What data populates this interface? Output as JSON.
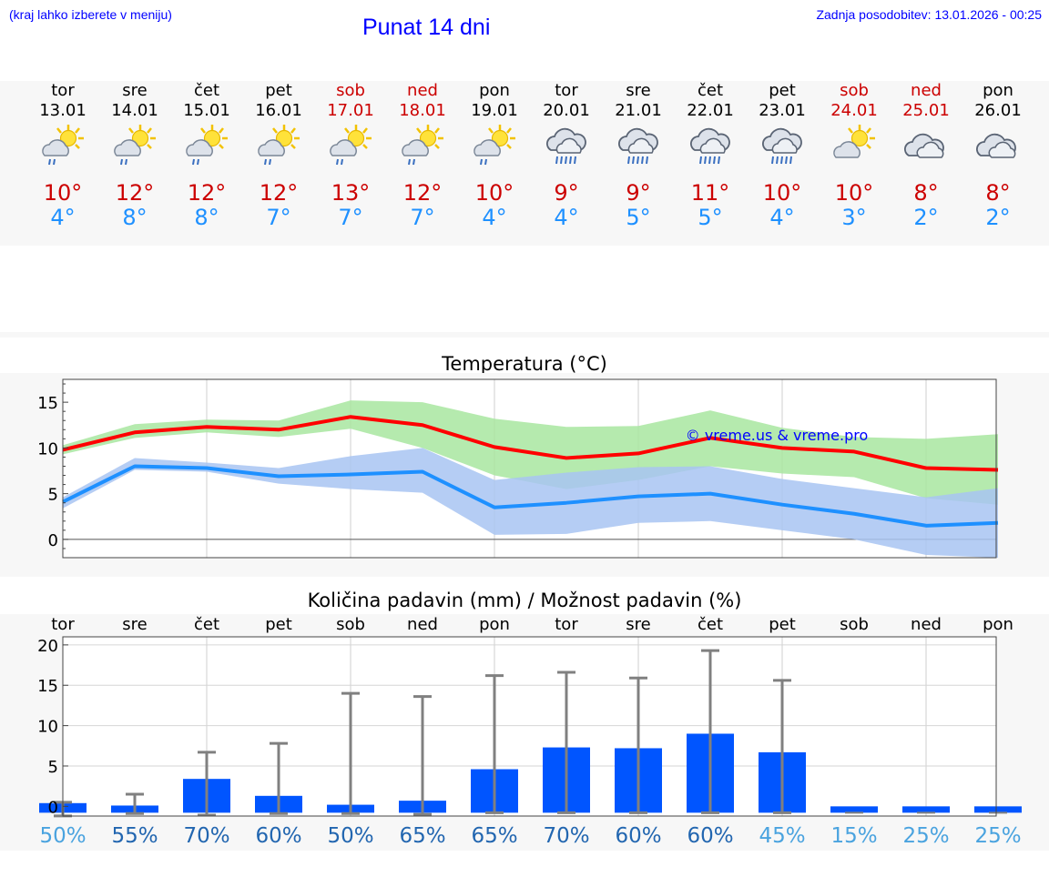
{
  "header": {
    "note": "(kraj lahko izberete v meniju)",
    "title": "Punat 14 dni",
    "updated": "Zadnja posodobitev: 13.01.2026 - 00:25"
  },
  "colors": {
    "link": "#0000ff",
    "weekend": "#cc0000",
    "max_temp": "#ff0000",
    "min_temp": "#1e90ff",
    "max_band": "#a8e6a0",
    "min_band": "#a8c4f2",
    "bar": "#0055ff",
    "whisker": "#808080"
  },
  "days": [
    {
      "name": "tor",
      "date": "13.01",
      "weekend": false,
      "icon": "sun-cloud-rain-icon",
      "tmax": "10°",
      "tmin": "4°"
    },
    {
      "name": "sre",
      "date": "14.01",
      "weekend": false,
      "icon": "sun-cloud-rain-icon",
      "tmax": "12°",
      "tmin": "8°"
    },
    {
      "name": "čet",
      "date": "15.01",
      "weekend": false,
      "icon": "sun-cloud-rain-icon",
      "tmax": "12°",
      "tmin": "8°"
    },
    {
      "name": "pet",
      "date": "16.01",
      "weekend": false,
      "icon": "sun-cloud-rain-icon",
      "tmax": "12°",
      "tmin": "7°"
    },
    {
      "name": "sob",
      "date": "17.01",
      "weekend": true,
      "icon": "sun-cloud-rain-icon",
      "tmax": "13°",
      "tmin": "7°"
    },
    {
      "name": "ned",
      "date": "18.01",
      "weekend": true,
      "icon": "sun-cloud-rain-icon",
      "tmax": "12°",
      "tmin": "7°"
    },
    {
      "name": "pon",
      "date": "19.01",
      "weekend": false,
      "icon": "sun-cloud-rain-icon",
      "tmax": "10°",
      "tmin": "4°"
    },
    {
      "name": "tor",
      "date": "20.01",
      "weekend": false,
      "icon": "cloud-rain-icon",
      "tmax": "9°",
      "tmin": "4°"
    },
    {
      "name": "sre",
      "date": "21.01",
      "weekend": false,
      "icon": "cloud-rain-icon",
      "tmax": "9°",
      "tmin": "5°"
    },
    {
      "name": "čet",
      "date": "22.01",
      "weekend": false,
      "icon": "cloud-rain-icon",
      "tmax": "11°",
      "tmin": "5°"
    },
    {
      "name": "pet",
      "date": "23.01",
      "weekend": false,
      "icon": "cloud-rain-icon",
      "tmax": "10°",
      "tmin": "4°"
    },
    {
      "name": "sob",
      "date": "24.01",
      "weekend": true,
      "icon": "sun-cloud-icon",
      "tmax": "10°",
      "tmin": "3°"
    },
    {
      "name": "ned",
      "date": "25.01",
      "weekend": true,
      "icon": "cloud-icon",
      "tmax": "8°",
      "tmin": "2°"
    },
    {
      "name": "pon",
      "date": "26.01",
      "weekend": false,
      "icon": "cloud-icon",
      "tmax": "8°",
      "tmin": "2°"
    }
  ],
  "chart_data": [
    {
      "type": "line",
      "title": "Temperatura (°C)",
      "watermark": "© vreme.us & vreme.pro",
      "ylim": [
        -2,
        17.5
      ],
      "yticks": [
        0,
        5,
        10,
        15
      ],
      "x": [
        0,
        1,
        2,
        3,
        4,
        5,
        6,
        7,
        8,
        9,
        10,
        11,
        12,
        13
      ],
      "series": [
        {
          "name": "max",
          "values": [
            9.8,
            11.7,
            12.3,
            12.0,
            13.4,
            12.5,
            10.1,
            8.9,
            9.4,
            11.1,
            10.0,
            9.6,
            7.8,
            7.6
          ]
        },
        {
          "name": "min",
          "values": [
            4.1,
            8.0,
            7.8,
            6.9,
            7.1,
            7.4,
            3.5,
            4.0,
            4.7,
            5.0,
            3.8,
            2.8,
            1.5,
            1.8
          ]
        }
      ],
      "bands": [
        {
          "name": "max_range",
          "low": [
            9.3,
            11.1,
            11.7,
            11.2,
            12.1,
            10.0,
            7.0,
            5.5,
            6.5,
            8.0,
            7.2,
            6.8,
            4.5,
            3.8
          ],
          "high": [
            10.3,
            12.6,
            13.1,
            13.0,
            15.2,
            15.0,
            13.2,
            12.3,
            12.4,
            14.1,
            12.2,
            11.2,
            11.0,
            11.5
          ]
        },
        {
          "name": "min_range",
          "low": [
            3.4,
            7.6,
            7.4,
            6.1,
            5.5,
            5.1,
            0.5,
            0.6,
            1.8,
            2.0,
            1.0,
            0.0,
            -1.7,
            -2.0
          ],
          "high": [
            4.6,
            8.9,
            8.4,
            7.8,
            9.1,
            10.0,
            6.5,
            7.3,
            7.9,
            8.0,
            6.6,
            5.6,
            4.6,
            5.6
          ]
        }
      ]
    },
    {
      "type": "bar",
      "title": "Količina padavin (mm) / Možnost padavin (%)",
      "categories": [
        "tor",
        "sre",
        "čet",
        "pet",
        "sob",
        "ned",
        "pon",
        "tor",
        "sre",
        "čet",
        "pet",
        "sob",
        "ned",
        "pon"
      ],
      "ylim": [
        -1.2,
        21
      ],
      "yticks": [
        0,
        5,
        10,
        15,
        20
      ],
      "values": [
        0.4,
        0.1,
        3.4,
        1.3,
        0.2,
        0.7,
        4.6,
        7.3,
        7.2,
        9.0,
        6.7,
        0.0,
        0.0,
        0.0
      ],
      "error_high": [
        0.0,
        1.5,
        6.7,
        7.8,
        14.0,
        13.6,
        16.2,
        16.6,
        15.9,
        19.3,
        15.6,
        0.0,
        0.0,
        0.0
      ],
      "error_low": [
        0.4,
        0.1,
        0.3,
        0.1,
        0.1,
        0.2,
        0.0,
        0.0,
        0.0,
        0.0,
        0.0,
        0.0,
        0.0,
        0.0
      ],
      "probabilities": [
        "50%",
        "55%",
        "70%",
        "60%",
        "50%",
        "65%",
        "65%",
        "70%",
        "60%",
        "60%",
        "45%",
        "15%",
        "25%",
        "25%"
      ],
      "probability_colors": [
        "#4aa3df",
        "#2266b0",
        "#2266b0",
        "#2266b0",
        "#2266b0",
        "#2266b0",
        "#2266b0",
        "#2266b0",
        "#2266b0",
        "#2266b0",
        "#4aa3df",
        "#4aa3df",
        "#4aa3df",
        "#4aa3df"
      ]
    }
  ]
}
